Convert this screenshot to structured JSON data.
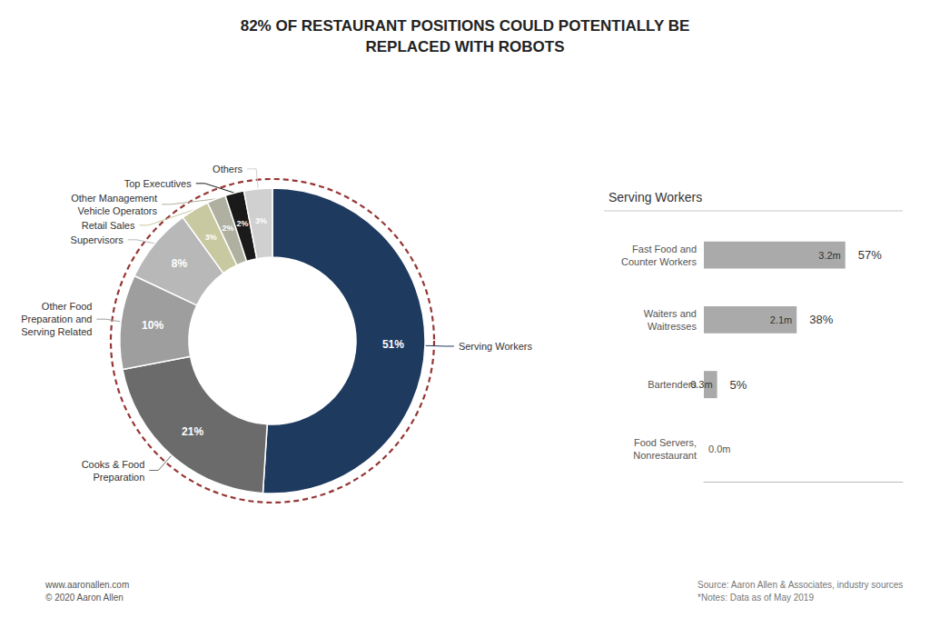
{
  "chart_data": [
    {
      "type": "pie",
      "title": "82% OF RESTAURANT POSITIONS COULD POTENTIALLY BE\nREPLACED WITH ROBOTS",
      "categories": [
        "Serving Workers",
        "Cooks & Food\nPreparation",
        "Other Food\nPreparation and\nServing Related",
        "Supervisors",
        "Retail Sales",
        "Other Management\nVehicle Operators",
        "Top Executives",
        "Others"
      ],
      "values": [
        51,
        21,
        10,
        8,
        3,
        2,
        2,
        3
      ],
      "value_labels": [
        "51%",
        "21%",
        "10%",
        "8%",
        "3%",
        "2%",
        "2%",
        "3%"
      ],
      "colors": [
        "#1e3a5f",
        "#6b6b6b",
        "#9e9e9e",
        "#b8b8b8",
        "#c8c9a0",
        "#b0b0a0",
        "#1a1a1a",
        "#d0d0d0"
      ],
      "data_labels": true,
      "annotations": [
        "www.aaronallen.com\n© 2020 Aaron Allen",
        "Source: Aaron Allen & Associates, industry sources\n*Notes: Data as of May 2019"
      ]
    },
    {
      "type": "bar",
      "title": "Serving Workers",
      "orientation": "horizontal",
      "categories": [
        "Fast Food and\nCounter Workers",
        "Waiters and\nWaitresses",
        "Bartenders",
        "Food Servers,\nNonrestaurant"
      ],
      "values": [
        3.2,
        2.1,
        0.3,
        0.0
      ],
      "value_labels": [
        "3.2m",
        "2.1m",
        "0.3m",
        "0.0m"
      ],
      "shares": [
        57,
        38,
        5,
        null
      ],
      "share_labels": [
        "57%",
        "38%",
        "5%",
        null
      ],
      "color": "#aaaaaa",
      "xlim": [
        0,
        4.5
      ],
      "grid": false,
      "tick_labels": "y",
      "data_labels": true
    }
  ]
}
